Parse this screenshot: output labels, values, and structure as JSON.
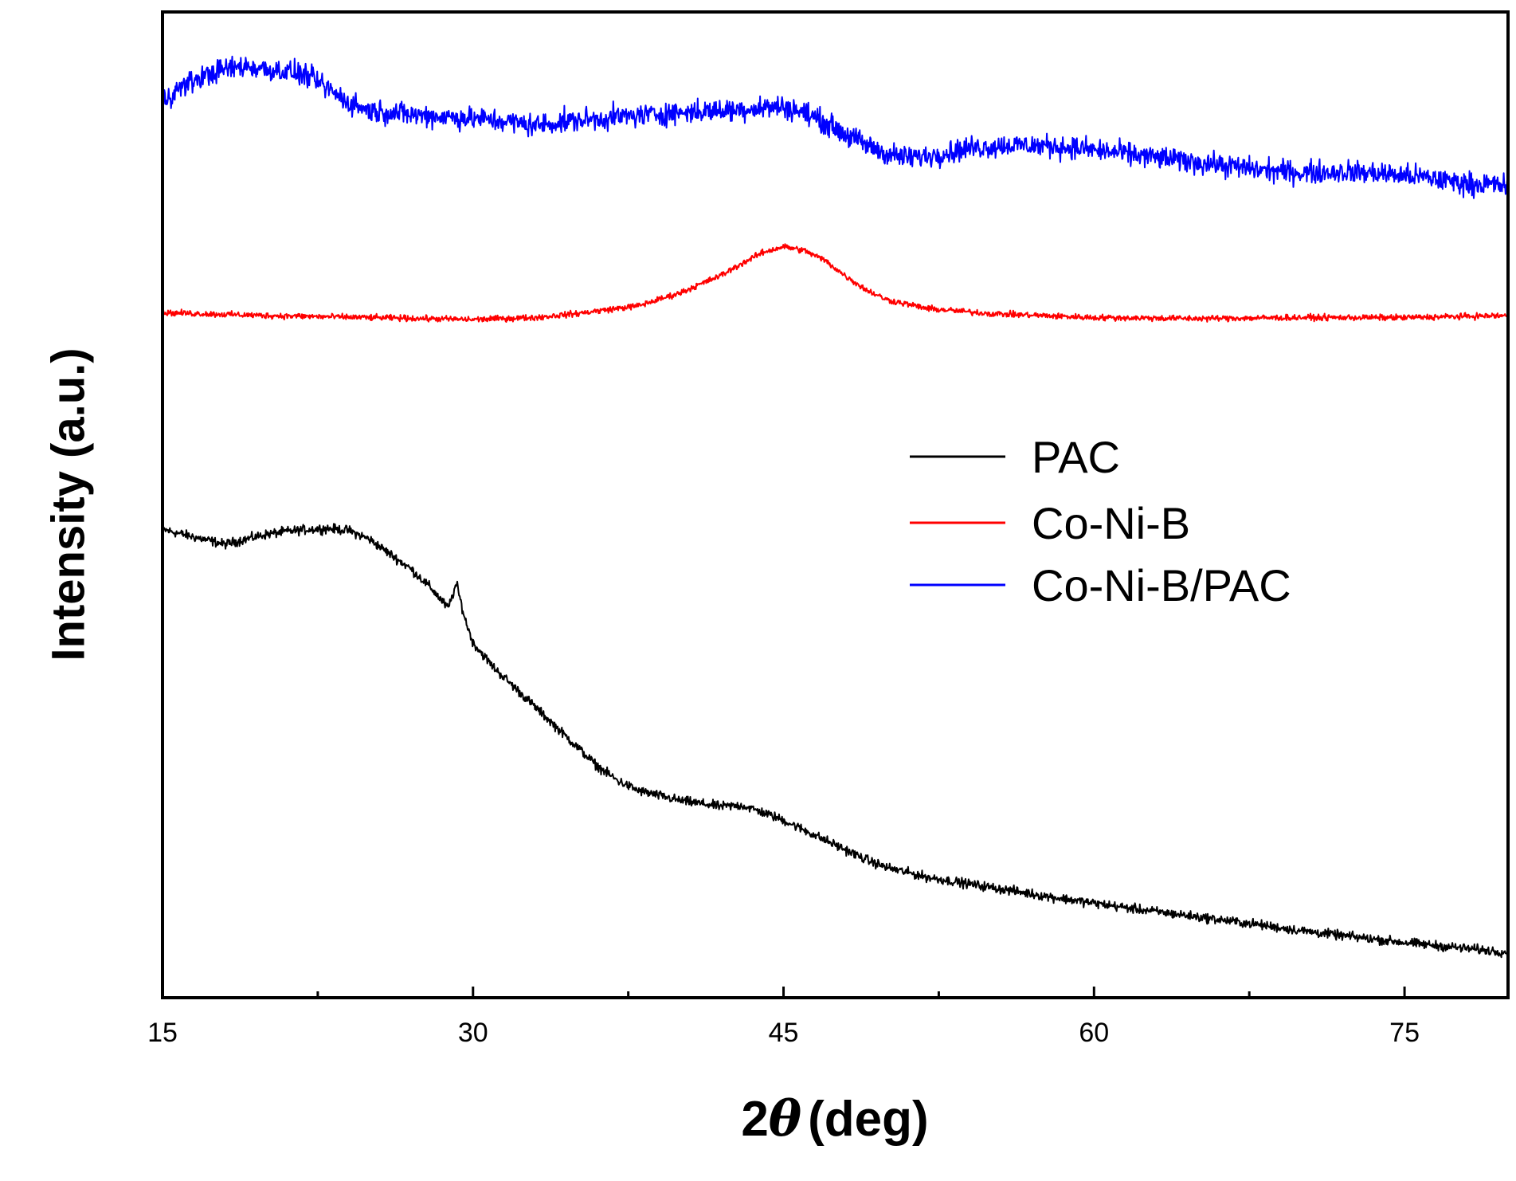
{
  "chart_data": {
    "type": "line",
    "title": "",
    "xlabel": {
      "main": "2",
      "symbol": "θ",
      "unit": "(deg)"
    },
    "ylabel": "Intensity (a.u.)",
    "xlim": [
      15,
      80
    ],
    "ylim": [
      0,
      100
    ],
    "y_ticks_shown": false,
    "x_ticks": [
      15,
      30,
      45,
      60,
      75
    ],
    "x_tick_labels": [
      "15",
      "30",
      "45",
      "60",
      "75"
    ],
    "x_minor_ticks": [
      22.5,
      37.5,
      52.5,
      67.5
    ],
    "grid": false,
    "legend_position": "center-right",
    "series": [
      {
        "name": "PAC",
        "color": "#000000",
        "noise": 0.7,
        "x": [
          15,
          16,
          17,
          18,
          19,
          20,
          21,
          22,
          23,
          24,
          25,
          26,
          27,
          28,
          28.8,
          29.2,
          29.6,
          30,
          31,
          32,
          33,
          34,
          35,
          36,
          37,
          38,
          39,
          40,
          41,
          42,
          43,
          44,
          45,
          46,
          47,
          48,
          49,
          50,
          52,
          55,
          58,
          60,
          62,
          65,
          68,
          70,
          72,
          75,
          78,
          80
        ],
        "y": [
          47.5,
          47,
          46.5,
          46,
          46.5,
          47,
          47.3,
          47.5,
          47.6,
          47.4,
          46.5,
          45,
          43.5,
          41.5,
          39.5,
          42,
          38.5,
          36,
          33.5,
          31.5,
          29.5,
          27.5,
          25.5,
          23.5,
          22,
          21,
          20.5,
          20,
          19.7,
          19.4,
          19.5,
          18.8,
          18,
          17,
          16,
          15,
          14,
          13.2,
          12.2,
          11.2,
          10.2,
          9.6,
          9,
          8.2,
          7.4,
          6.8,
          6.3,
          5.6,
          5.0,
          4.6
        ]
      },
      {
        "name": "Co-Ni-B",
        "color": "#ff0000",
        "noise": 0.45,
        "x": [
          15,
          20,
          25,
          30,
          33,
          35,
          38,
          40,
          42,
          43,
          44,
          45,
          46,
          47,
          48,
          49,
          50,
          52,
          55,
          60,
          65,
          70,
          75,
          80
        ],
        "y": [
          69.5,
          69.2,
          69,
          68.8,
          69,
          69.4,
          70.2,
          71.5,
          73.3,
          74.5,
          75.6,
          76.2,
          75.8,
          74.8,
          73.2,
          71.8,
          70.8,
          69.9,
          69.4,
          69,
          68.9,
          69,
          69,
          69.2
        ]
      },
      {
        "name": "Co-Ni-B/PAC",
        "color": "#0000ff",
        "noise": 1.7,
        "x": [
          15,
          16,
          17,
          18,
          19,
          20,
          21,
          22,
          23,
          24,
          25,
          27,
          30,
          32,
          33,
          35,
          38,
          40,
          42,
          44,
          45,
          46,
          47,
          48,
          49,
          50,
          51,
          52,
          54,
          56,
          58,
          60,
          62,
          64,
          66,
          68,
          70,
          72,
          74,
          76,
          78,
          80
        ],
        "y": [
          91,
          92.5,
          93.5,
          94.2,
          94.5,
          94.2,
          94,
          93.5,
          92.2,
          90.8,
          90,
          89.6,
          89.2,
          88.8,
          88.5,
          89,
          89.5,
          89.8,
          90,
          90.3,
          90.4,
          89.8,
          88.8,
          87.6,
          86.5,
          85.6,
          85.2,
          85.4,
          86.2,
          86.5,
          86.4,
          86,
          85.5,
          85,
          84.5,
          84,
          83.7,
          83.8,
          83.6,
          83.2,
          82.6,
          82.4
        ]
      }
    ]
  }
}
